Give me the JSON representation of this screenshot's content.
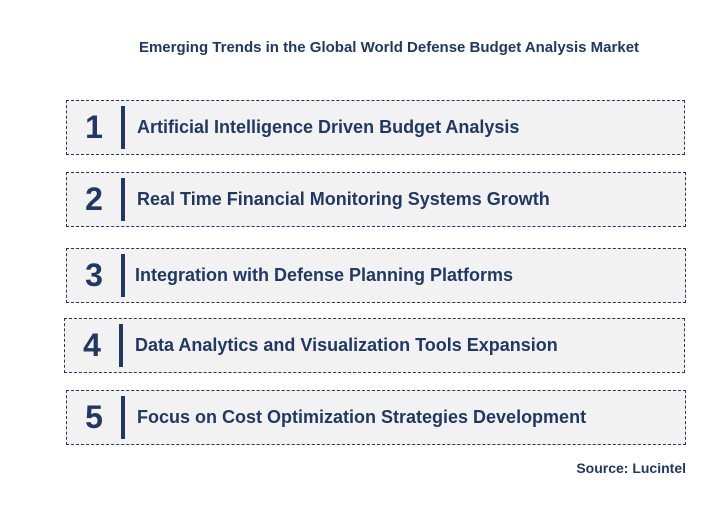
{
  "title": "Emerging Trends in the Global World Defense Budget Analysis Market",
  "trends": [
    {
      "number": "1",
      "label": "Artificial Intelligence Driven Budget Analysis"
    },
    {
      "number": "2",
      "label": "Real Time Financial Monitoring Systems Growth"
    },
    {
      "number": "3",
      "label": "Integration with Defense Planning Platforms"
    },
    {
      "number": "4",
      "label": "Data Analytics and Visualization Tools Expansion"
    },
    {
      "number": "5",
      "label": "Focus on Cost Optimization Strategies Development"
    }
  ],
  "source": "Source: Lucintel",
  "colors": {
    "text": "#1f3864",
    "box_fill": "#f2f2f2",
    "box_border": "#1f3864"
  }
}
